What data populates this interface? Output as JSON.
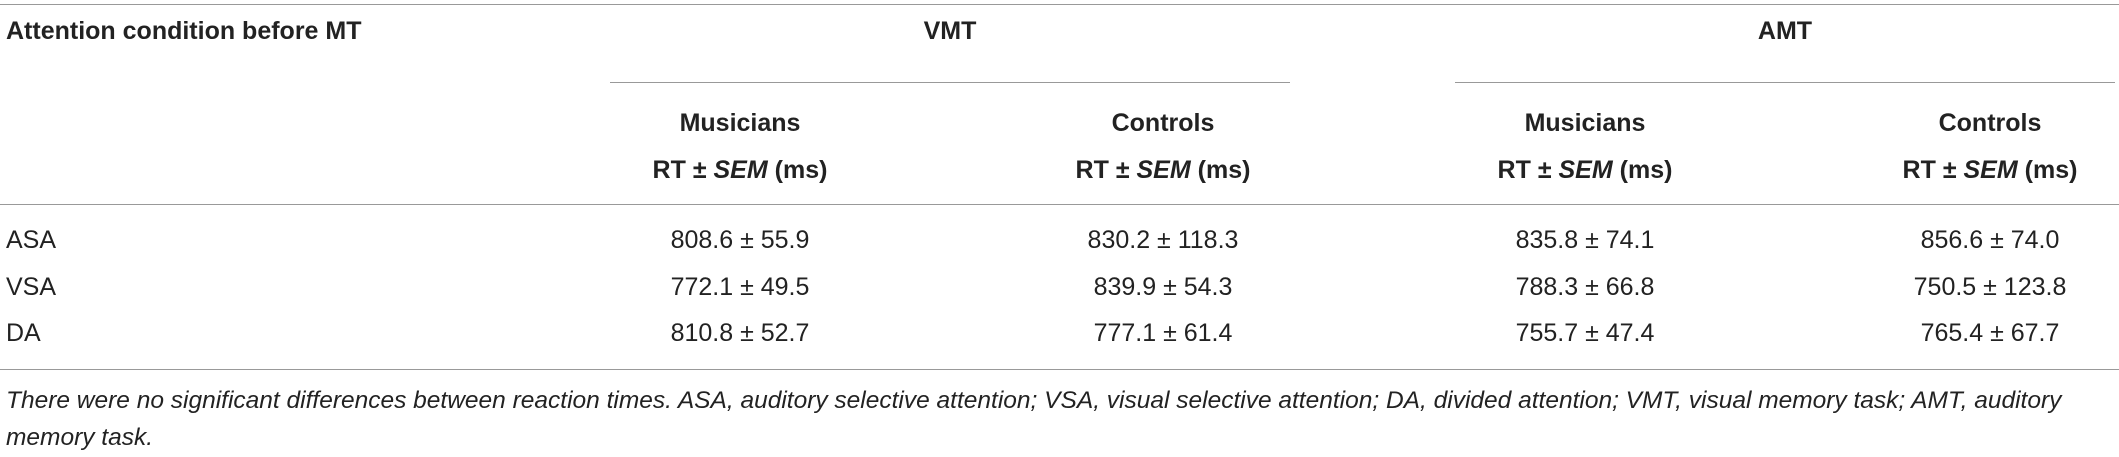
{
  "table": {
    "corner": "Attention condition before MT",
    "groups": [
      {
        "label": "VMT",
        "columns": [
          {
            "label": "Musicians",
            "unit": [
              "RT ±",
              "SEM",
              "(ms)"
            ]
          },
          {
            "label": "Controls",
            "unit": [
              "RT ±",
              "SEM",
              "(ms)"
            ]
          }
        ]
      },
      {
        "label": "AMT",
        "columns": [
          {
            "label": "Musicians",
            "unit": [
              "RT ±",
              "SEM",
              "(ms)"
            ]
          },
          {
            "label": "Controls",
            "unit": [
              "RT ±",
              "SEM",
              "(ms)"
            ]
          }
        ]
      }
    ],
    "rows": [
      {
        "label": "ASA",
        "cells": [
          "808.6 ± 55.9",
          "830.2 ± 118.3",
          "835.8 ± 74.1",
          "856.6 ± 74.0"
        ]
      },
      {
        "label": "VSA",
        "cells": [
          "772.1 ± 49.5",
          "839.9 ± 54.3",
          "788.3 ± 66.8",
          "750.5 ± 123.8"
        ]
      },
      {
        "label": "DA",
        "cells": [
          "810.8 ± 52.7",
          "777.1 ± 61.4",
          "755.7 ± 47.4",
          "765.4 ± 67.7"
        ]
      }
    ]
  },
  "footnote": "There were no significant differences between reaction times. ASA, auditory selective attention; VSA, visual selective attention; DA, divided attention; VMT, visual memory task; AMT, auditory memory task."
}
